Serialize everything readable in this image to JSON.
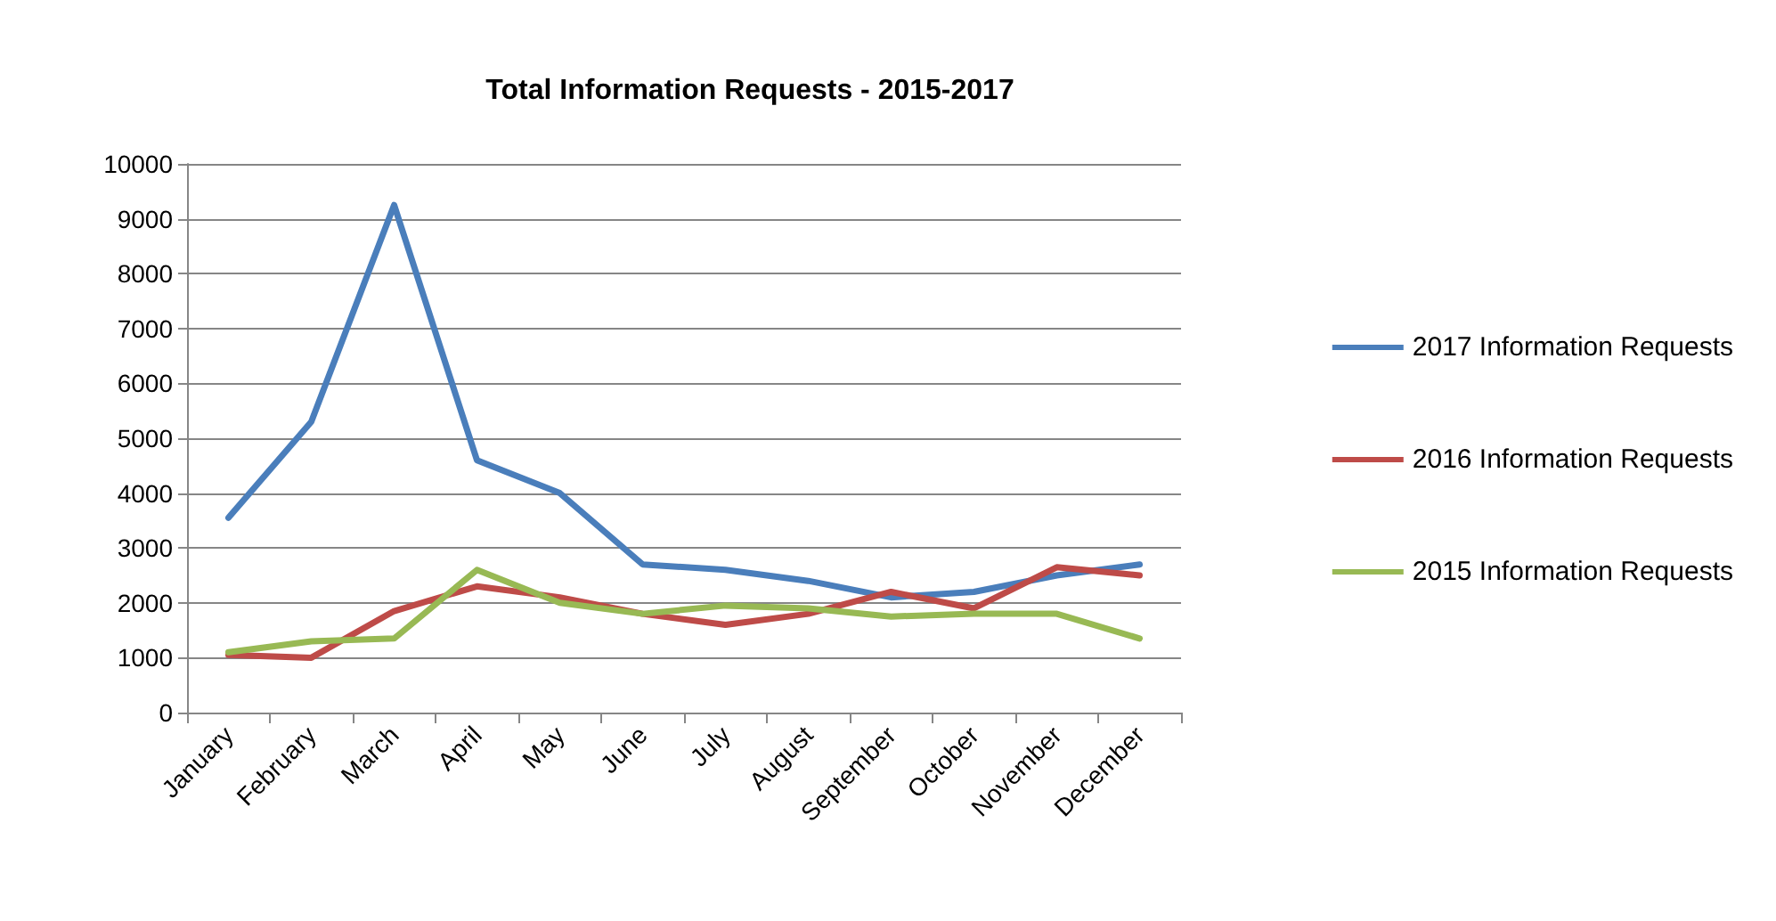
{
  "chart_data": {
    "type": "line",
    "title": "Total Information Requests - 2015-2017",
    "categories": [
      "January",
      "February",
      "March",
      "April",
      "May",
      "June",
      "July",
      "August",
      "September",
      "October",
      "November",
      "December"
    ],
    "series": [
      {
        "name": "2017 Information Requests",
        "color": "#4a7ebb",
        "values": [
          3550,
          5300,
          9250,
          4600,
          4000,
          2700,
          2600,
          2400,
          2100,
          2200,
          2500,
          2700
        ]
      },
      {
        "name": "2016 Information Requests",
        "color": "#be4b48",
        "values": [
          1050,
          1000,
          1850,
          2300,
          2100,
          1800,
          1600,
          1800,
          2200,
          1900,
          2650,
          2500
        ]
      },
      {
        "name": "2015 Information Requests",
        "color": "#98b954",
        "values": [
          1100,
          1300,
          1350,
          2600,
          2000,
          1800,
          1950,
          1900,
          1750,
          1800,
          1800,
          1350
        ]
      }
    ],
    "ylim": [
      0,
      10000
    ],
    "yticks": [
      0,
      1000,
      2000,
      3000,
      4000,
      5000,
      6000,
      7000,
      8000,
      9000,
      10000
    ],
    "grid": "y",
    "legend": "right",
    "marker": "none",
    "line_style": "solid"
  }
}
